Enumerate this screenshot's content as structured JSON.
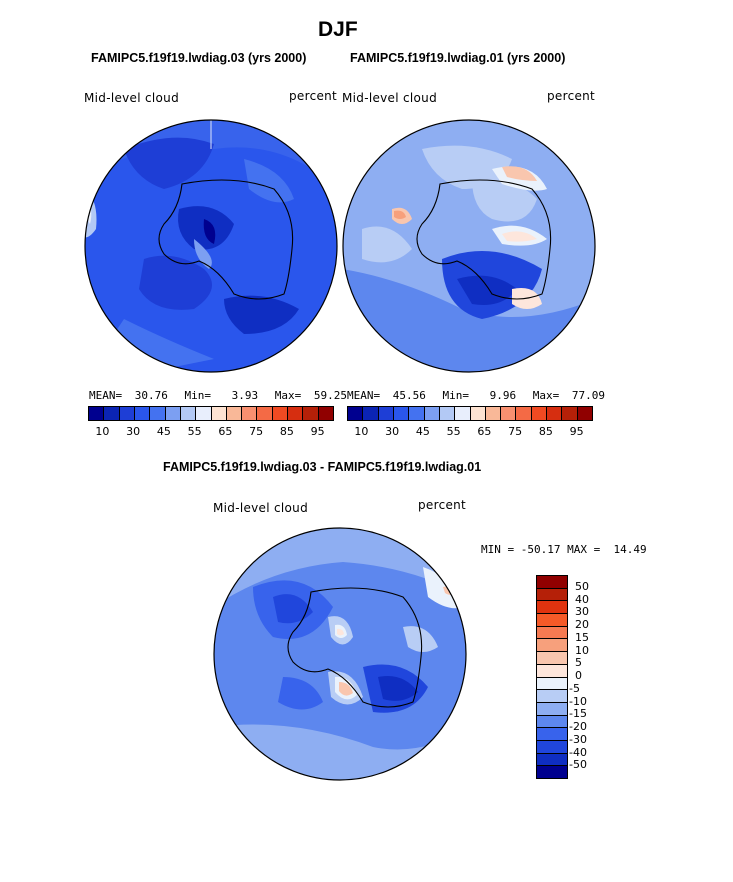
{
  "title": "DJF",
  "panels": [
    {
      "subtitle": "FAMIPC5.f19f19.lwdiag.03 (yrs 2000)",
      "variable": "Mid-level cloud",
      "units": "percent",
      "mean_label": "MEAN=",
      "mean": "30.76",
      "min_label": "Min=",
      "min": "3.93",
      "max_label": "Max=",
      "max": "59.25"
    },
    {
      "subtitle": "FAMIPC5.f19f19.lwdiag.01 (yrs 2000)",
      "variable": "Mid-level cloud",
      "units": "percent",
      "mean_label": "MEAN=",
      "mean": "45.56",
      "min_label": "Min=",
      "min": "9.96",
      "max_label": "Max=",
      "max": "77.09"
    }
  ],
  "abs_colorbar": {
    "colors": [
      "#00008f",
      "#0b24b4",
      "#1e3ed6",
      "#2a56ec",
      "#4472f0",
      "#7c9ff2",
      "#b3c9f5",
      "#e8eefc",
      "#fde3d2",
      "#f9b898",
      "#f89070",
      "#f46a45",
      "#f04a22",
      "#d62e10",
      "#b52008",
      "#900000"
    ],
    "labels": [
      "10",
      "30",
      "45",
      "55",
      "65",
      "75",
      "85",
      "95"
    ]
  },
  "diff": {
    "subtitle": "FAMIPC5.f19f19.lwdiag.03 - FAMIPC5.f19f19.lwdiag.01",
    "variable": "Mid-level cloud",
    "units": "percent",
    "minmax_text": "MIN = -50.17 MAX =  14.49",
    "colorbar": {
      "colors": [
        "#900000",
        "#b52008",
        "#e0330f",
        "#f55a28",
        "#f67a52",
        "#f7a07c",
        "#f9c6ae",
        "#fde6dc",
        "#eaf2fc",
        "#b8cdf5",
        "#8eaef2",
        "#5d87ee",
        "#3863ec",
        "#2046dc",
        "#0f2ec2",
        "#00008f"
      ],
      "labels": [
        "50",
        "40",
        "30",
        "20",
        "15",
        "10",
        "5",
        "0",
        "-5",
        "-10",
        "-15",
        "-20",
        "-30",
        "-40",
        "-50"
      ]
    }
  }
}
